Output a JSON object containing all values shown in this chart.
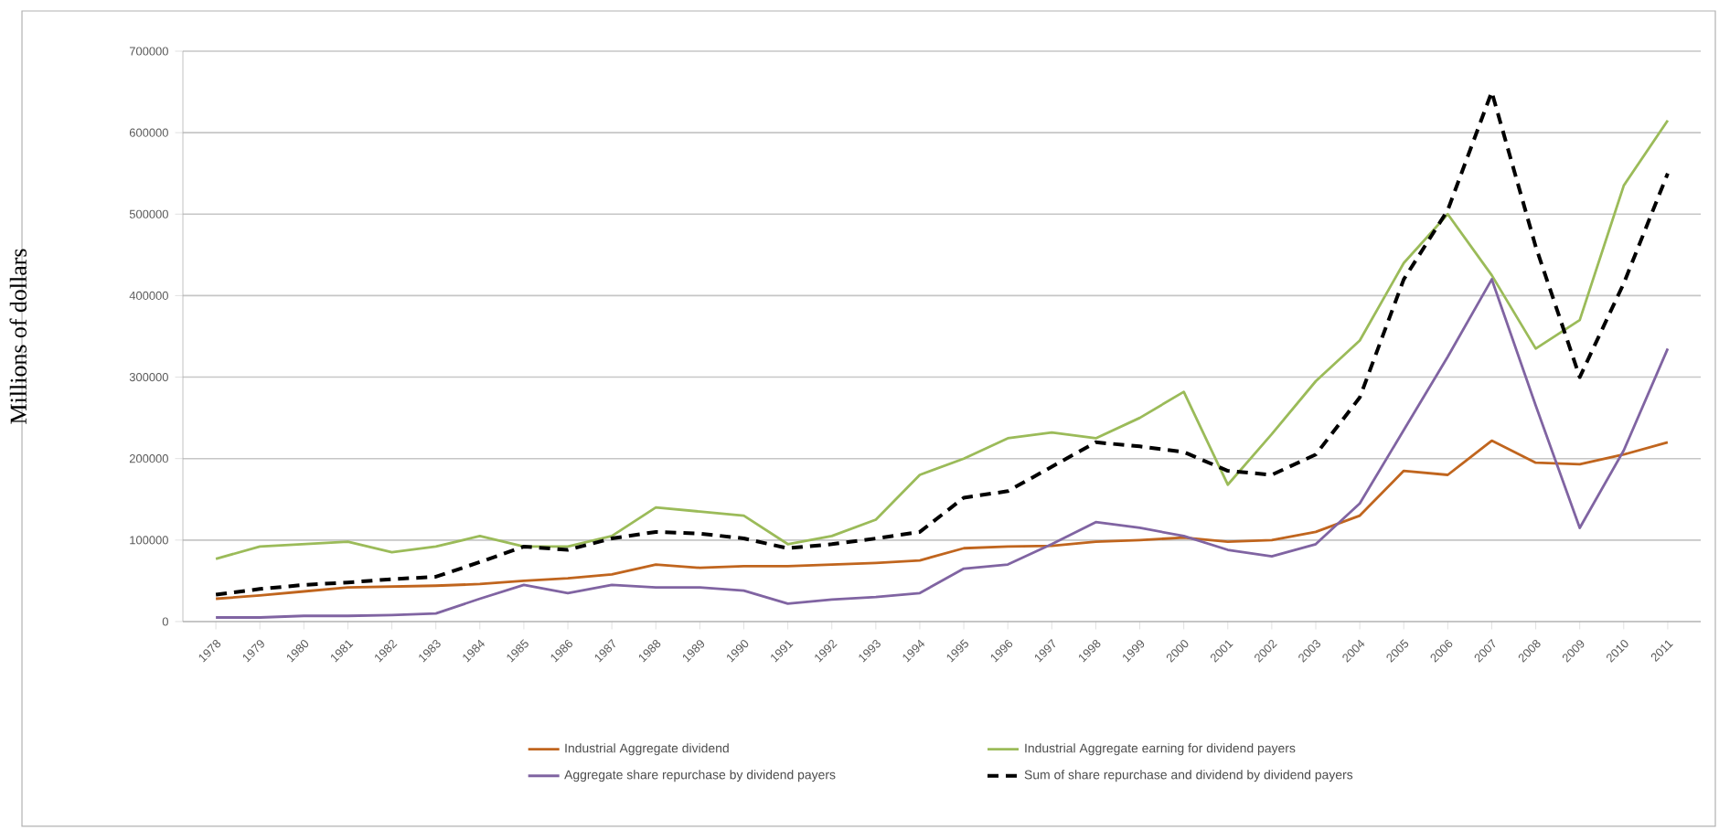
{
  "chart_data": {
    "type": "line",
    "ylabel": "Millions of dollars",
    "categories": [
      "1978",
      "1979",
      "1980",
      "1981",
      "1982",
      "1983",
      "1984",
      "1985",
      "1986",
      "1987",
      "1988",
      "1989",
      "1990",
      "1991",
      "1992",
      "1993",
      "1994",
      "1995",
      "1996",
      "1997",
      "1998",
      "1999",
      "2000",
      "2001",
      "2002",
      "2003",
      "2004",
      "2005",
      "2006",
      "2007",
      "2008",
      "2009",
      "2010",
      "2011"
    ],
    "ylim": [
      0,
      700000
    ],
    "yticks": [
      0,
      100000,
      200000,
      300000,
      400000,
      500000,
      600000,
      700000
    ],
    "grid": "y",
    "legend": "bottom",
    "marker": "none",
    "series": [
      {
        "name": "Industrial Aggregate dividend",
        "color": "#c0651e",
        "line_style": "solid",
        "values": [
          28000,
          32000,
          37000,
          42000,
          43000,
          44000,
          46000,
          50000,
          53000,
          58000,
          70000,
          66000,
          68000,
          68000,
          70000,
          72000,
          75000,
          90000,
          92000,
          93000,
          98000,
          100000,
          103000,
          98000,
          100000,
          110000,
          130000,
          185000,
          180000,
          222000,
          195000,
          193000,
          205000,
          220000
        ]
      },
      {
        "name": "Industrial Aggregate earning for dividend payers",
        "color": "#9bbb59",
        "line_style": "solid",
        "values": [
          77000,
          92000,
          95000,
          98000,
          85000,
          92000,
          105000,
          92000,
          92000,
          105000,
          140000,
          135000,
          130000,
          95000,
          105000,
          125000,
          180000,
          200000,
          225000,
          232000,
          225000,
          250000,
          282000,
          168000,
          230000,
          295000,
          345000,
          440000,
          500000,
          425000,
          335000,
          370000,
          535000,
          615000
        ]
      },
      {
        "name": "Aggregate share repurchase by dividend payers",
        "color": "#8064a2",
        "line_style": "solid",
        "values": [
          5000,
          5000,
          7000,
          7000,
          8000,
          10000,
          28000,
          45000,
          35000,
          45000,
          42000,
          42000,
          38000,
          22000,
          27000,
          30000,
          35000,
          65000,
          70000,
          95000,
          122000,
          115000,
          105000,
          88000,
          80000,
          95000,
          145000,
          235000,
          325000,
          420000,
          265000,
          115000,
          210000,
          335000
        ]
      },
      {
        "name": "Sum of share repurchase and dividend by dividend payers",
        "color": "#000000",
        "line_style": "dashed",
        "values": [
          33000,
          40000,
          45000,
          48000,
          52000,
          55000,
          73000,
          92000,
          88000,
          102000,
          110000,
          108000,
          102000,
          90000,
          95000,
          102000,
          110000,
          152000,
          160000,
          190000,
          220000,
          215000,
          208000,
          185000,
          180000,
          205000,
          275000,
          420000,
          505000,
          650000,
          460000,
          300000,
          415000,
          550000
        ]
      }
    ]
  }
}
